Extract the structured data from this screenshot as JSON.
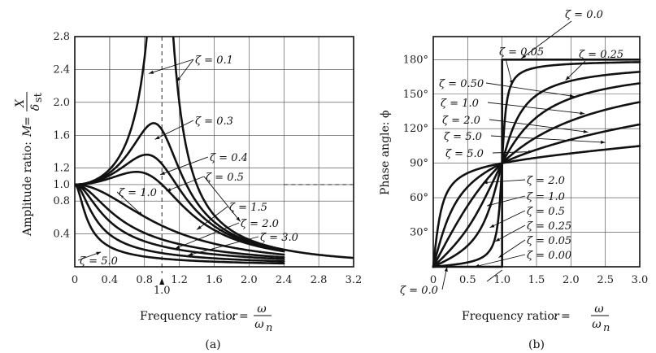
{
  "figure_labels": {
    "a": "(a)",
    "b": "(b)"
  },
  "chart_data": [
    {
      "id": "a",
      "type": "line",
      "caption": "(a)",
      "xlabel": "Frequency ratio: r = ω/ω_n",
      "xlabel_parts": {
        "lead": "Frequency ratio: ",
        "var": "r",
        "eq": " = ",
        "num": "ω",
        "den": "ω",
        "den_sub": "n"
      },
      "ylabel": "Amplitude ratio: M = X/δst",
      "ylabel_parts": {
        "lead": "Amplitude ratio: ",
        "var": "M",
        "eq": " = ",
        "num": "X",
        "den": "δ",
        "den_sub": "st"
      },
      "xlim": [
        0,
        3.2
      ],
      "ylim": [
        0,
        2.8
      ],
      "x_ticks": [
        "0",
        "0.4",
        "0.8",
        "1.2",
        "1.6",
        "2.0",
        "2.4",
        "2.8",
        "3.2"
      ],
      "y_ticks": [
        "0.4",
        "0.8",
        "1.0",
        "1.2",
        "1.6",
        "2.0",
        "2.4",
        "2.8"
      ],
      "extra_x_label": "1.0",
      "grid": true,
      "series": [
        {
          "name": "ζ = 0.1",
          "zeta": 0.1,
          "x_range": [
            0,
            3.2
          ]
        },
        {
          "name": "ζ = 0.3",
          "zeta": 0.3,
          "x_range": [
            0,
            2.4
          ]
        },
        {
          "name": "ζ = 0.4",
          "zeta": 0.4,
          "x_range": [
            0,
            2.4
          ]
        },
        {
          "name": "ζ = 0.5",
          "zeta": 0.5,
          "x_range": [
            0,
            2.4
          ]
        },
        {
          "name": "ζ = 1.0",
          "zeta": 1.0,
          "x_range": [
            0,
            2.4
          ]
        },
        {
          "name": "ζ = 1.5",
          "zeta": 1.5,
          "x_range": [
            0,
            2.4
          ]
        },
        {
          "name": "ζ = 2.0",
          "zeta": 2.0,
          "x_range": [
            0,
            2.4
          ]
        },
        {
          "name": "ζ = 3.0",
          "zeta": 3.0,
          "x_range": [
            0,
            2.4
          ]
        },
        {
          "name": "ζ = 5.0",
          "zeta": 5.0,
          "x_range": [
            0,
            2.4
          ]
        }
      ],
      "annotations": [
        "ζ = 0.1",
        "ζ = 0.3",
        "ζ = 0.4",
        "ζ = 0.5",
        "ζ = 1.0",
        "ζ = 1.5",
        "ζ = 2.0",
        "ζ = 3.0",
        "ζ = 5.0"
      ]
    },
    {
      "id": "b",
      "type": "line",
      "caption": "(b)",
      "xlabel": "Frequency ratio: r = ω/ω_n",
      "xlabel_parts": {
        "lead": "Frequency ratio: ",
        "var": "r",
        "eq": " = ",
        "num": "ω",
        "den": "ω",
        "den_sub": "n"
      },
      "ylabel": "Phase angle: ϕ",
      "xlim": [
        0,
        3.0
      ],
      "ylim": [
        0,
        200
      ],
      "x_ticks": [
        "0",
        "0.5",
        "1.0",
        "1.5",
        "2.0",
        "2.5",
        "3.0"
      ],
      "y_ticks": [
        "30°",
        "60°",
        "90°",
        "120°",
        "150°",
        "180°"
      ],
      "grid": true,
      "series": [
        {
          "name": "ζ = 0.0",
          "zeta": 0.0
        },
        {
          "name": "ζ = 0.05",
          "zeta": 0.05
        },
        {
          "name": "ζ = 0.25",
          "zeta": 0.25
        },
        {
          "name": "ζ = 0.5",
          "zeta": 0.5
        },
        {
          "name": "ζ = 1.0",
          "zeta": 1.0
        },
        {
          "name": "ζ = 2.0",
          "zeta": 2.0
        },
        {
          "name": "ζ = 5.0",
          "zeta": 5.0
        }
      ],
      "annotations": [
        "ζ = 0.0",
        "ζ = 0.05",
        "ζ = 0.25",
        "ζ = 0.50",
        "ζ = 1.0",
        "ζ = 2.0",
        "ζ = 5.0",
        "ζ = 5.0",
        "ζ = 2.0",
        "ζ = 1.0",
        "ζ = 0.5",
        "ζ = 0.25",
        "ζ = 0.05",
        "ζ = 0.00",
        "ζ = 0.0"
      ]
    }
  ]
}
